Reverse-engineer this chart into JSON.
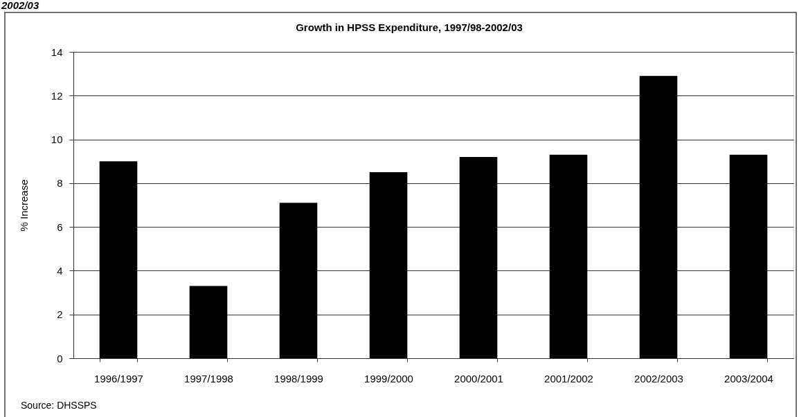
{
  "chart_data": {
    "type": "bar",
    "title": "Growth in HPSS Expenditure, 1997/98-2002/03",
    "ylabel": "% Increase",
    "categories": [
      "1996/1997",
      "1997/1998",
      "1998/1999",
      "1999/2000",
      "2000/2001",
      "2001/2002",
      "2002/2003",
      "2003/2004"
    ],
    "values": [
      9.0,
      3.3,
      7.1,
      8.5,
      9.2,
      9.3,
      12.9,
      9.3
    ],
    "color": "#000000",
    "ylim": [
      0,
      14
    ],
    "yticks": [
      0,
      2,
      4,
      6,
      8,
      10,
      12,
      14
    ],
    "grid": "y",
    "annotations": [
      "2002/03",
      "Source: DHSSPS"
    ]
  }
}
